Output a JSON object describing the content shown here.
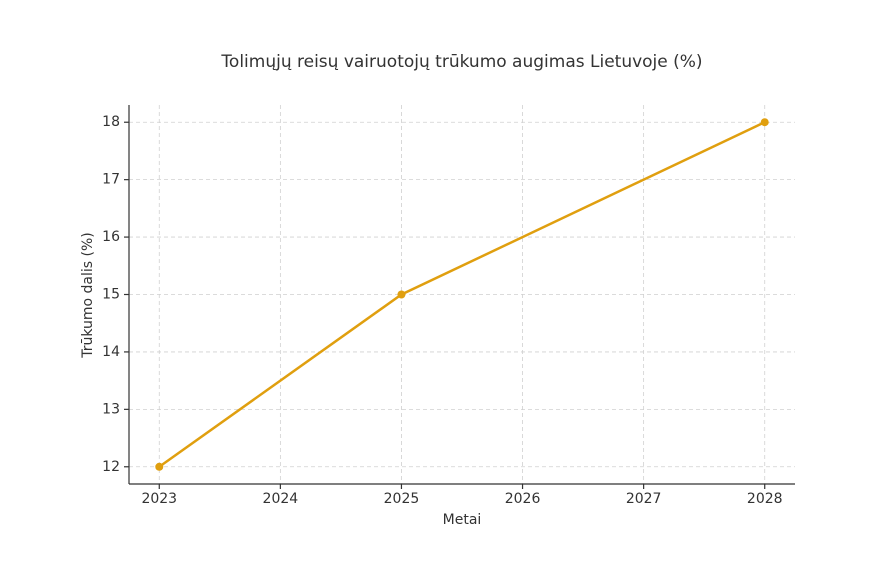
{
  "chart_data": {
    "type": "line",
    "title": "Tolimųjų reisų vairuotojų trūkumo augimas Lietuvoje (%)",
    "x_label": "Metai",
    "y_label": "Trūkumo dalis (%)",
    "x": [
      2023,
      2025,
      2028
    ],
    "series": [
      {
        "name": "Trūkumo dalis",
        "color": "#e09f0f",
        "values": [
          12,
          15,
          18
        ]
      }
    ],
    "xlim": [
      2022.75,
      2028.25
    ],
    "xticks": [
      2023,
      2024,
      2025,
      2026,
      2027,
      2028
    ],
    "ylim": [
      11.7,
      18.3
    ],
    "yticks": [
      12,
      13,
      14,
      15,
      16,
      17,
      18
    ],
    "grid": true
  }
}
